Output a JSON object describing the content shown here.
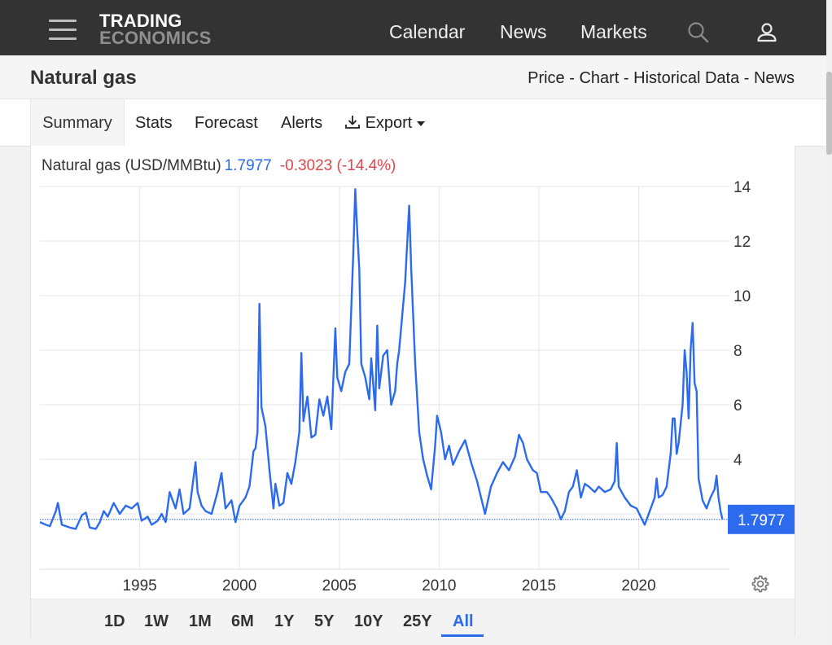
{
  "header": {
    "logo_line1": "TRADING",
    "logo_line2": "ECONOMICS",
    "nav": [
      "Calendar",
      "News",
      "Markets"
    ],
    "icons": [
      "menu-icon",
      "search-icon",
      "user-icon"
    ]
  },
  "page": {
    "title": "Natural gas",
    "breadcrumbs": [
      "Price",
      "Chart",
      "Historical Data",
      "News"
    ],
    "breadcrumb_separator": " - "
  },
  "tabs": [
    "Summary",
    "Stats",
    "Forecast",
    "Alerts",
    "Export"
  ],
  "active_tab": "Summary",
  "legend": {
    "name": "Natural gas (USD/MMBtu)",
    "price": "1.7977",
    "change": "-0.3023 (-14.4%)"
  },
  "price_tag": "1.7977",
  "ranges": [
    "1D",
    "1W",
    "1M",
    "6M",
    "1Y",
    "5Y",
    "10Y",
    "25Y",
    "All"
  ],
  "active_range": "All",
  "colors": {
    "series": "#2c6bed",
    "negative": "#e0474c",
    "topbar": "#333333"
  },
  "chart_data": {
    "type": "line",
    "title": "",
    "xlabel": "",
    "ylabel": "",
    "grid": true,
    "yaxis_position": "right",
    "x_ticks": [
      1995,
      2000,
      2005,
      2010,
      2015,
      2020
    ],
    "y_ticks": [
      4,
      6,
      8,
      10,
      12,
      14
    ],
    "xlim": [
      1990.0,
      2024.3
    ],
    "ylim": [
      0,
      14
    ],
    "last_value": 1.7977,
    "series": [
      {
        "points": [
          [
            1990.0,
            1.7
          ],
          [
            1990.3,
            1.6
          ],
          [
            1990.5,
            1.55
          ],
          [
            1990.8,
            2.1
          ],
          [
            1990.9,
            2.4
          ],
          [
            1991.1,
            1.6
          ],
          [
            1991.5,
            1.5
          ],
          [
            1991.8,
            1.45
          ],
          [
            1992.1,
            1.95
          ],
          [
            1992.3,
            2.05
          ],
          [
            1992.5,
            1.5
          ],
          [
            1992.8,
            1.45
          ],
          [
            1993.0,
            1.7
          ],
          [
            1993.2,
            2.1
          ],
          [
            1993.4,
            1.9
          ],
          [
            1993.7,
            2.4
          ],
          [
            1994.0,
            2.0
          ],
          [
            1994.3,
            2.3
          ],
          [
            1994.6,
            2.2
          ],
          [
            1994.9,
            2.4
          ],
          [
            1995.1,
            1.75
          ],
          [
            1995.4,
            1.9
          ],
          [
            1995.6,
            1.6
          ],
          [
            1995.9,
            1.75
          ],
          [
            1996.1,
            2.0
          ],
          [
            1996.3,
            1.7
          ],
          [
            1996.5,
            2.8
          ],
          [
            1996.8,
            2.2
          ],
          [
            1997.0,
            2.9
          ],
          [
            1997.2,
            2.0
          ],
          [
            1997.5,
            2.2
          ],
          [
            1997.8,
            3.9
          ],
          [
            1997.9,
            2.8
          ],
          [
            1998.1,
            2.3
          ],
          [
            1998.3,
            2.1
          ],
          [
            1998.6,
            2.0
          ],
          [
            1998.9,
            2.8
          ],
          [
            1999.1,
            3.5
          ],
          [
            1999.3,
            2.2
          ],
          [
            1999.6,
            2.5
          ],
          [
            1999.8,
            1.7
          ],
          [
            2000.0,
            2.3
          ],
          [
            2000.3,
            2.6
          ],
          [
            2000.5,
            3.0
          ],
          [
            2000.7,
            4.3
          ],
          [
            2000.8,
            4.4
          ],
          [
            2000.9,
            5.0
          ],
          [
            2001.0,
            9.7
          ],
          [
            2001.1,
            5.9
          ],
          [
            2001.3,
            5.2
          ],
          [
            2001.5,
            3.6
          ],
          [
            2001.7,
            2.2
          ],
          [
            2001.8,
            3.1
          ],
          [
            2002.0,
            2.3
          ],
          [
            2002.2,
            2.4
          ],
          [
            2002.4,
            3.5
          ],
          [
            2002.6,
            3.1
          ],
          [
            2002.8,
            3.9
          ],
          [
            2003.0,
            5.0
          ],
          [
            2003.1,
            7.9
          ],
          [
            2003.2,
            5.4
          ],
          [
            2003.4,
            6.3
          ],
          [
            2003.6,
            4.8
          ],
          [
            2003.8,
            4.9
          ],
          [
            2004.0,
            6.2
          ],
          [
            2004.2,
            5.6
          ],
          [
            2004.4,
            6.3
          ],
          [
            2004.6,
            5.1
          ],
          [
            2004.8,
            8.8
          ],
          [
            2004.9,
            7.0
          ],
          [
            2005.1,
            6.5
          ],
          [
            2005.3,
            7.2
          ],
          [
            2005.5,
            7.5
          ],
          [
            2005.7,
            11.5
          ],
          [
            2005.8,
            13.9
          ],
          [
            2005.9,
            12.3
          ],
          [
            2006.0,
            11.0
          ],
          [
            2006.1,
            7.5
          ],
          [
            2006.3,
            7.0
          ],
          [
            2006.5,
            6.2
          ],
          [
            2006.6,
            7.7
          ],
          [
            2006.8,
            5.8
          ],
          [
            2006.9,
            8.9
          ],
          [
            2007.0,
            6.6
          ],
          [
            2007.2,
            7.8
          ],
          [
            2007.4,
            8.0
          ],
          [
            2007.6,
            6.0
          ],
          [
            2007.8,
            6.5
          ],
          [
            2007.9,
            7.5
          ],
          [
            2008.0,
            8.0
          ],
          [
            2008.3,
            10.5
          ],
          [
            2008.5,
            13.3
          ],
          [
            2008.6,
            11.0
          ],
          [
            2008.8,
            7.5
          ],
          [
            2009.0,
            5.0
          ],
          [
            2009.2,
            4.0
          ],
          [
            2009.4,
            3.4
          ],
          [
            2009.6,
            2.9
          ],
          [
            2009.8,
            4.5
          ],
          [
            2009.9,
            5.6
          ],
          [
            2010.1,
            5.0
          ],
          [
            2010.3,
            4.0
          ],
          [
            2010.5,
            4.5
          ],
          [
            2010.7,
            3.8
          ],
          [
            2011.0,
            4.3
          ],
          [
            2011.3,
            4.7
          ],
          [
            2011.6,
            3.9
          ],
          [
            2011.9,
            3.2
          ],
          [
            2012.1,
            2.6
          ],
          [
            2012.3,
            2.0
          ],
          [
            2012.6,
            3.0
          ],
          [
            2012.9,
            3.5
          ],
          [
            2013.2,
            3.9
          ],
          [
            2013.5,
            3.6
          ],
          [
            2013.8,
            4.1
          ],
          [
            2014.0,
            4.9
          ],
          [
            2014.2,
            4.6
          ],
          [
            2014.4,
            4.0
          ],
          [
            2014.7,
            3.6
          ],
          [
            2014.9,
            3.5
          ],
          [
            2015.1,
            2.8
          ],
          [
            2015.4,
            2.8
          ],
          [
            2015.6,
            2.6
          ],
          [
            2015.9,
            2.2
          ],
          [
            2016.1,
            1.8
          ],
          [
            2016.3,
            2.1
          ],
          [
            2016.5,
            2.8
          ],
          [
            2016.7,
            3.0
          ],
          [
            2016.9,
            3.6
          ],
          [
            2017.1,
            2.6
          ],
          [
            2017.3,
            3.1
          ],
          [
            2017.5,
            3.0
          ],
          [
            2017.8,
            2.8
          ],
          [
            2018.0,
            3.0
          ],
          [
            2018.3,
            2.8
          ],
          [
            2018.6,
            2.9
          ],
          [
            2018.8,
            3.2
          ],
          [
            2018.9,
            4.6
          ],
          [
            2019.0,
            3.0
          ],
          [
            2019.3,
            2.6
          ],
          [
            2019.6,
            2.3
          ],
          [
            2019.9,
            2.2
          ],
          [
            2020.1,
            1.9
          ],
          [
            2020.3,
            1.6
          ],
          [
            2020.6,
            2.2
          ],
          [
            2020.8,
            2.6
          ],
          [
            2020.9,
            3.3
          ],
          [
            2021.0,
            2.6
          ],
          [
            2021.2,
            2.7
          ],
          [
            2021.4,
            3.0
          ],
          [
            2021.6,
            4.2
          ],
          [
            2021.7,
            5.5
          ],
          [
            2021.8,
            5.5
          ],
          [
            2021.9,
            4.2
          ],
          [
            2022.0,
            4.6
          ],
          [
            2022.2,
            6.0
          ],
          [
            2022.3,
            8.0
          ],
          [
            2022.4,
            7.2
          ],
          [
            2022.5,
            5.5
          ],
          [
            2022.6,
            8.0
          ],
          [
            2022.7,
            9.0
          ],
          [
            2022.8,
            6.8
          ],
          [
            2022.9,
            6.5
          ],
          [
            2023.0,
            3.3
          ],
          [
            2023.2,
            2.5
          ],
          [
            2023.4,
            2.2
          ],
          [
            2023.6,
            2.6
          ],
          [
            2023.8,
            2.9
          ],
          [
            2023.9,
            3.4
          ],
          [
            2024.0,
            2.6
          ],
          [
            2024.1,
            2.1
          ],
          [
            2024.2,
            1.7977
          ]
        ]
      }
    ]
  }
}
